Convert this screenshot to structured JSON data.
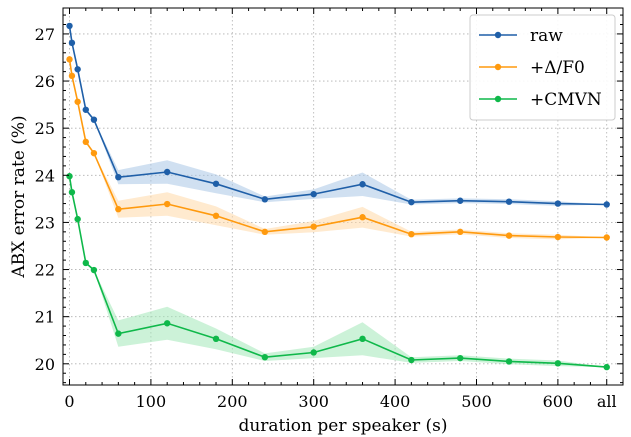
{
  "chart_data": {
    "type": "line",
    "title": "",
    "xlabel": "duration per speaker (s)",
    "ylabel": "ABX error rate (%)",
    "xlim": [
      -8,
      680
    ],
    "ylim": [
      19.55,
      27.55
    ],
    "x_ticks": [
      0,
      100,
      200,
      300,
      400,
      500,
      600,
      660
    ],
    "x_tick_labels": [
      "0",
      "100",
      "200",
      "300",
      "400",
      "500",
      "600",
      "all"
    ],
    "y_ticks": [
      20,
      21,
      22,
      23,
      24,
      25,
      26,
      27
    ],
    "y_tick_labels": [
      "20",
      "21",
      "22",
      "23",
      "24",
      "25",
      "26",
      "27"
    ],
    "grid": true,
    "legend_position": "top-right",
    "x": [
      0,
      3,
      10,
      20,
      30,
      60,
      120,
      180,
      240,
      300,
      360,
      420,
      480,
      540,
      600,
      660
    ],
    "series": [
      {
        "name": "raw",
        "color": "#1f5fa8",
        "band_color": "#aac6e6",
        "values": [
          27.17,
          26.81,
          26.25,
          25.39,
          25.18,
          23.96,
          24.07,
          23.82,
          23.49,
          23.6,
          23.81,
          23.43,
          23.46,
          23.44,
          23.4,
          23.38
        ],
        "band": [
          0,
          0,
          0,
          0,
          0,
          0.15,
          0.25,
          0.2,
          0.06,
          0.1,
          0.25,
          0.05,
          0.05,
          0.05,
          0.05,
          0
        ]
      },
      {
        "name": "+Δ/F0",
        "color": "#ff9a0e",
        "band_color": "#ffd9a8",
        "values": [
          26.46,
          26.11,
          25.56,
          24.71,
          24.47,
          23.28,
          23.39,
          23.14,
          22.8,
          22.91,
          23.11,
          22.75,
          22.8,
          22.72,
          22.69,
          22.68
        ],
        "band": [
          0,
          0,
          0,
          0,
          0,
          0.18,
          0.25,
          0.2,
          0.06,
          0.12,
          0.22,
          0.05,
          0.05,
          0.05,
          0.05,
          0
        ]
      },
      {
        "name": "+CMVN",
        "color": "#0fb84a",
        "band_color": "#a3e8b8",
        "values": [
          23.98,
          23.64,
          23.07,
          22.14,
          21.99,
          20.64,
          20.86,
          20.53,
          20.14,
          20.24,
          20.53,
          20.08,
          20.12,
          20.05,
          20.01,
          19.93
        ],
        "band": [
          0,
          0,
          0,
          0,
          0,
          0.28,
          0.35,
          0.22,
          0.08,
          0.12,
          0.35,
          0.06,
          0.06,
          0.06,
          0.06,
          0
        ]
      }
    ]
  }
}
